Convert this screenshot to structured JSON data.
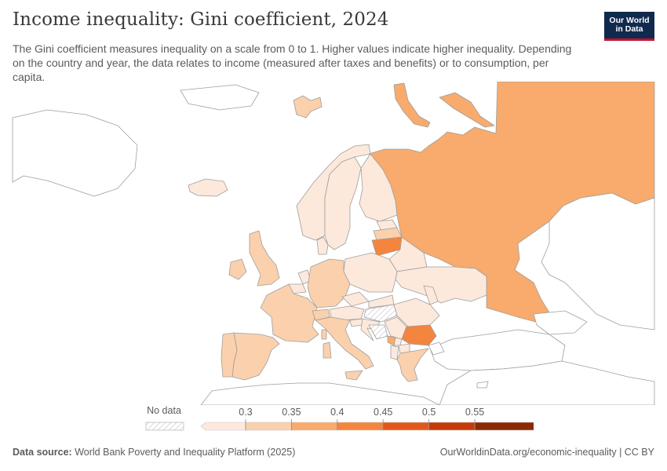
{
  "header": {
    "title": "Income inequality: Gini coefficient, 2024",
    "subtitle": "The Gini coefficient measures inequality on a scale from 0 to 1. Higher values indicate higher inequality. Depending on the country and year, the data relates to income (measured after taxes and benefits) or to consumption, per capita."
  },
  "logo": {
    "line1": "Our World",
    "line2": "in Data"
  },
  "legend": {
    "no_data_label": "No data",
    "ticks": [
      "0.3",
      "0.35",
      "0.4",
      "0.45",
      "0.5",
      "0.55"
    ],
    "colors": [
      "#fde9dc",
      "#fbd0ac",
      "#f8ab6c",
      "#f3853e",
      "#e2581a",
      "#c53a06",
      "#8c2a05"
    ]
  },
  "colors": {
    "tier1": "#fde9dc",
    "tier2": "#fbd0ac",
    "tier3": "#f8ab6c",
    "tier4": "#f3853e",
    "no_data_hatch": "#c9c9c9",
    "border": "#9e9e9e"
  },
  "footer": {
    "source_label": "Data source:",
    "source_text": "World Bank Poverty and Inequality Platform (2025)",
    "url_text": "OurWorldinData.org/economic-inequality | CC BY"
  }
}
